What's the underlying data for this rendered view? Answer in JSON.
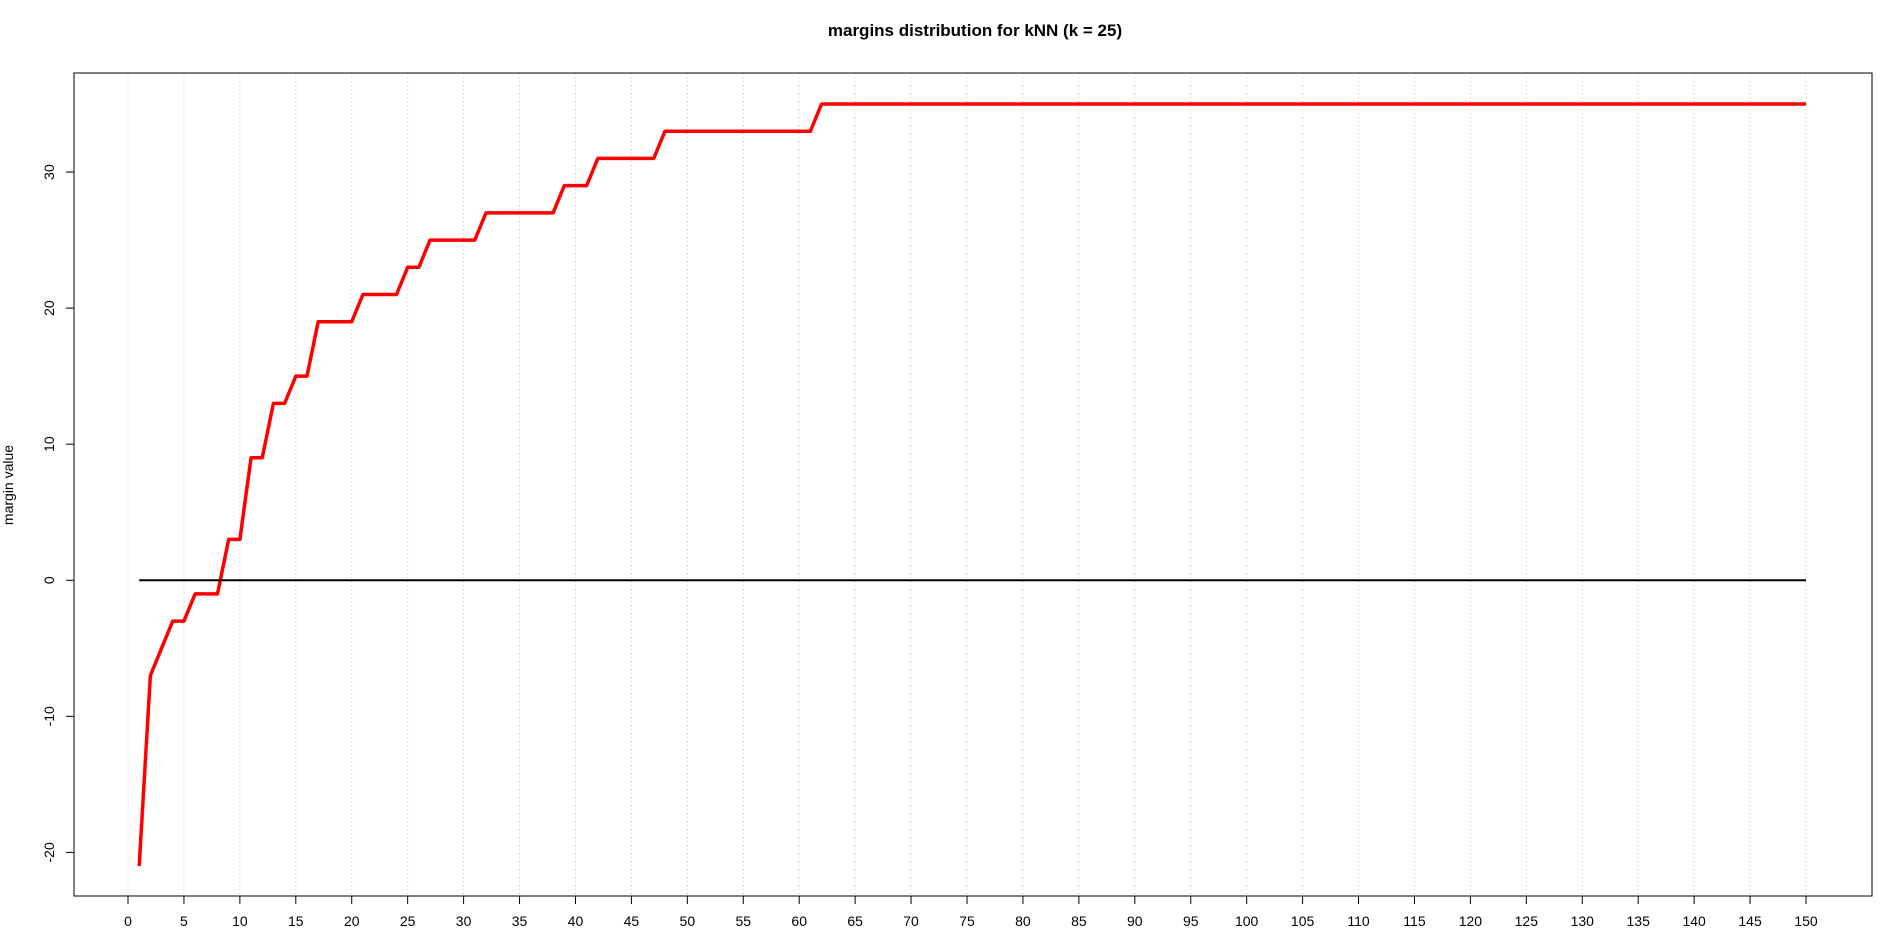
{
  "chart_data": {
    "type": "line",
    "title": "margins distribution for kNN (k = 25)",
    "xlabel": "",
    "ylabel": "margin value",
    "xlim": [
      0,
      150
    ],
    "ylim": [
      -21,
      35
    ],
    "x_ticks": [
      0,
      5,
      10,
      15,
      20,
      25,
      30,
      35,
      40,
      45,
      50,
      55,
      60,
      65,
      70,
      75,
      80,
      85,
      90,
      95,
      100,
      105,
      110,
      115,
      120,
      125,
      130,
      135,
      140,
      145,
      150
    ],
    "y_ticks": [
      -20,
      -10,
      0,
      10,
      20,
      30
    ],
    "grid": "vertical-dotted",
    "series": [
      {
        "color": "#ff0000",
        "points": [
          [
            1,
            -21
          ],
          [
            2,
            -7
          ],
          [
            3,
            -5
          ],
          [
            4,
            -3
          ],
          [
            5,
            -3
          ],
          [
            6,
            -1
          ],
          [
            7,
            -1
          ],
          [
            8,
            -1
          ],
          [
            9,
            3
          ],
          [
            10,
            3
          ],
          [
            11,
            9
          ],
          [
            12,
            9
          ],
          [
            13,
            13
          ],
          [
            14,
            13
          ],
          [
            15,
            15
          ],
          [
            16,
            15
          ],
          [
            17,
            19
          ],
          [
            18,
            19
          ],
          [
            19,
            19
          ],
          [
            20,
            19
          ],
          [
            21,
            21
          ],
          [
            22,
            21
          ],
          [
            23,
            21
          ],
          [
            24,
            21
          ],
          [
            25,
            23
          ],
          [
            26,
            23
          ],
          [
            27,
            25
          ],
          [
            28,
            25
          ],
          [
            29,
            25
          ],
          [
            30,
            25
          ],
          [
            31,
            25
          ],
          [
            32,
            27
          ],
          [
            33,
            27
          ],
          [
            34,
            27
          ],
          [
            35,
            27
          ],
          [
            36,
            27
          ],
          [
            37,
            27
          ],
          [
            38,
            27
          ],
          [
            39,
            29
          ],
          [
            40,
            29
          ],
          [
            41,
            29
          ],
          [
            42,
            31
          ],
          [
            43,
            31
          ],
          [
            44,
            31
          ],
          [
            45,
            31
          ],
          [
            46,
            31
          ],
          [
            47,
            31
          ],
          [
            48,
            33
          ],
          [
            49,
            33
          ],
          [
            50,
            33
          ],
          [
            51,
            33
          ],
          [
            52,
            33
          ],
          [
            53,
            33
          ],
          [
            54,
            33
          ],
          [
            55,
            33
          ],
          [
            56,
            33
          ],
          [
            57,
            33
          ],
          [
            58,
            33
          ],
          [
            59,
            33
          ],
          [
            60,
            33
          ],
          [
            61,
            33
          ],
          [
            62,
            35
          ],
          [
            70,
            35
          ],
          [
            80,
            35
          ],
          [
            90,
            35
          ],
          [
            100,
            35
          ],
          [
            110,
            35
          ],
          [
            120,
            35
          ],
          [
            130,
            35
          ],
          [
            140,
            35
          ],
          [
            150,
            35
          ]
        ]
      },
      {
        "color": "#000000",
        "points": [
          [
            1,
            0
          ],
          [
            150,
            0
          ]
        ]
      }
    ]
  }
}
